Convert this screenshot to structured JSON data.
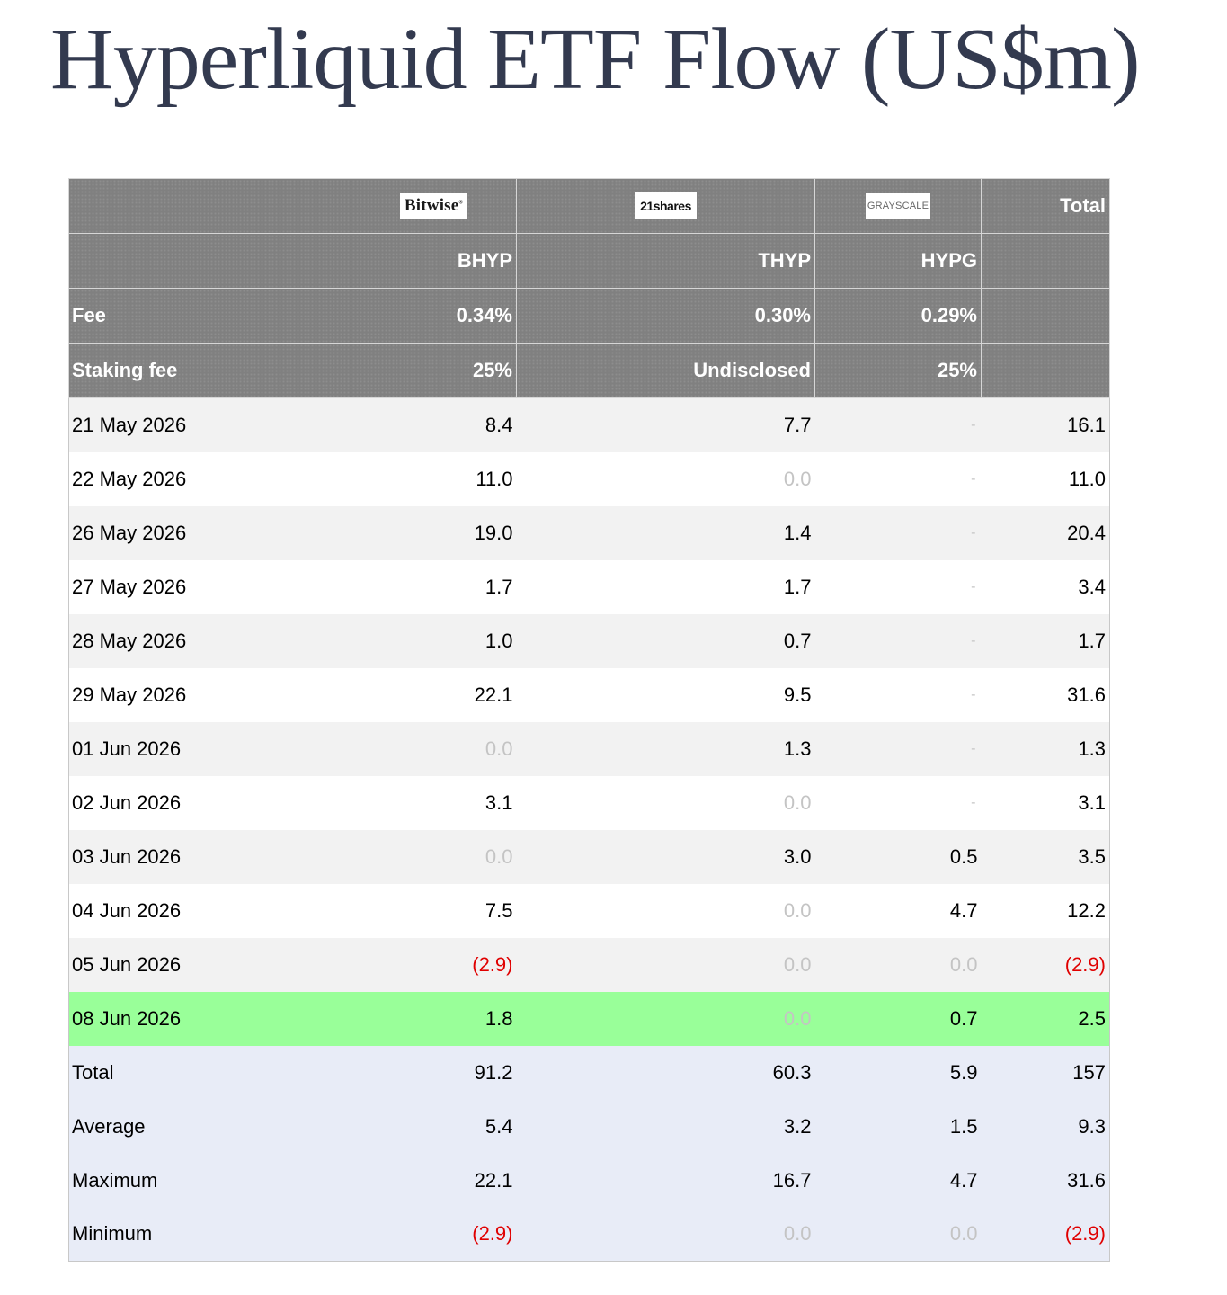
{
  "title": "Hyperliquid ETF Flow (US$m)",
  "issuers": [
    {
      "logo_text": "Bitwise",
      "ticker": "BHYP",
      "fee": "0.34%",
      "staking_fee": "25%"
    },
    {
      "logo_text": "21shares",
      "ticker": "THYP",
      "fee": "0.30%",
      "staking_fee": "Undisclosed"
    },
    {
      "logo_text": "GRAYSCALE",
      "ticker": "HYPG",
      "fee": "0.29%",
      "staking_fee": "25%"
    }
  ],
  "headers": {
    "total": "Total",
    "fee": "Fee",
    "staking_fee": "Staking fee"
  },
  "rows": [
    {
      "date": "21 May 2026",
      "bhyp": "8.4",
      "thyp": "7.7",
      "hypg": "-",
      "total": "16.1"
    },
    {
      "date": "22 May 2026",
      "bhyp": "11.0",
      "thyp": "0.0",
      "hypg": "-",
      "total": "11.0"
    },
    {
      "date": "26 May 2026",
      "bhyp": "19.0",
      "thyp": "1.4",
      "hypg": "-",
      "total": "20.4"
    },
    {
      "date": "27 May 2026",
      "bhyp": "1.7",
      "thyp": "1.7",
      "hypg": "-",
      "total": "3.4"
    },
    {
      "date": "28 May 2026",
      "bhyp": "1.0",
      "thyp": "0.7",
      "hypg": "-",
      "total": "1.7"
    },
    {
      "date": "29 May 2026",
      "bhyp": "22.1",
      "thyp": "9.5",
      "hypg": "-",
      "total": "31.6"
    },
    {
      "date": "01 Jun 2026",
      "bhyp": "0.0",
      "thyp": "1.3",
      "hypg": "-",
      "total": "1.3"
    },
    {
      "date": "02 Jun 2026",
      "bhyp": "3.1",
      "thyp": "0.0",
      "hypg": "-",
      "total": "3.1"
    },
    {
      "date": "03 Jun 2026",
      "bhyp": "0.0",
      "thyp": "3.0",
      "hypg": "0.5",
      "total": "3.5"
    },
    {
      "date": "04 Jun 2026",
      "bhyp": "7.5",
      "thyp": "0.0",
      "hypg": "4.7",
      "total": "12.2"
    },
    {
      "date": "05 Jun 2026",
      "bhyp": "(2.9)",
      "thyp": "0.0",
      "hypg": "0.0",
      "total": "(2.9)"
    },
    {
      "date": "08 Jun 2026",
      "bhyp": "1.8",
      "thyp": "0.0",
      "hypg": "0.7",
      "total": "2.5"
    }
  ],
  "summary": [
    {
      "label": "Total",
      "bhyp": "91.2",
      "thyp": "60.3",
      "hypg": "5.9",
      "total": "157"
    },
    {
      "label": "Average",
      "bhyp": "5.4",
      "thyp": "3.2",
      "hypg": "1.5",
      "total": "9.3"
    },
    {
      "label": "Maximum",
      "bhyp": "22.1",
      "thyp": "16.7",
      "hypg": "4.7",
      "total": "31.6"
    },
    {
      "label": "Minimum",
      "bhyp": "(2.9)",
      "thyp": "0.0",
      "hypg": "0.0",
      "total": "(2.9)"
    }
  ],
  "colors": {
    "header_bg": "#808080",
    "row_alt": "#f2f2f2",
    "highlight": "#99ff99",
    "summary_bg": "#e8ecf7",
    "negative": "#e00000",
    "muted": "#c4c4c4",
    "title": "#333a4f"
  }
}
